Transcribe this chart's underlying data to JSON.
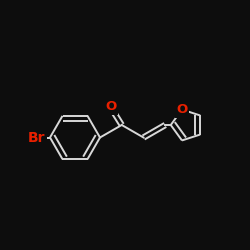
{
  "bg_color": "#0d0d0d",
  "bond_color": "#d8d8d8",
  "atom_colors": {
    "O": "#e82000",
    "Br": "#e82000",
    "C": "#d8d8d8"
  },
  "bond_width": 1.4,
  "font_size": 8.5,
  "figsize": [
    2.5,
    2.5
  ],
  "dpi": 100
}
